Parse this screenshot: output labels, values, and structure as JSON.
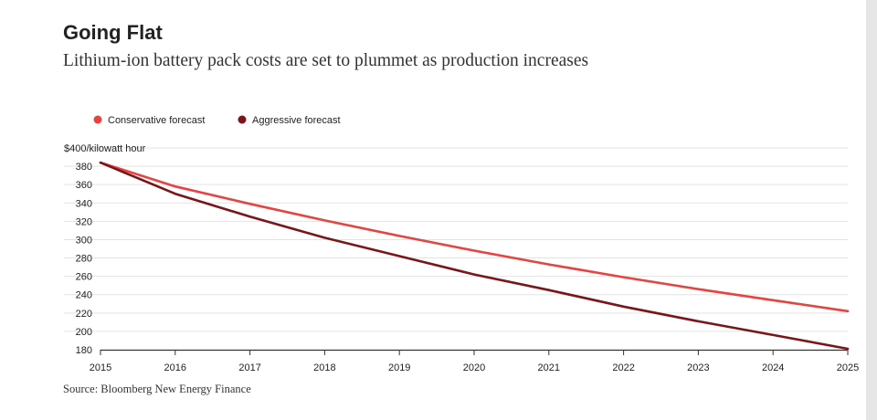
{
  "title": "Going Flat",
  "subtitle": "Lithium-ion battery pack costs are set to plummet as production increases",
  "source": "Source: Bloomberg New Energy Finance",
  "colors": {
    "conservative": "#e8433f",
    "aggressive": "#7a1619",
    "grid": "#e3e3e3",
    "axis": "#333333",
    "text": "#222222"
  },
  "chart_data": {
    "type": "line",
    "x": [
      2015,
      2016,
      2017,
      2018,
      2019,
      2020,
      2021,
      2022,
      2023,
      2024,
      2025
    ],
    "x_tick_labels": [
      "2015",
      "2016",
      "2017",
      "2018",
      "2019",
      "2020",
      "2021",
      "2022",
      "2023",
      "2024",
      "2025"
    ],
    "y_ticks": [
      180,
      200,
      220,
      240,
      260,
      280,
      300,
      320,
      340,
      360,
      380
    ],
    "y_unit_label": "$400/kilowatt hour",
    "ylim": [
      180,
      400
    ],
    "xlim": [
      2015,
      2025
    ],
    "grid": true,
    "legend_position": "top-left",
    "series": [
      {
        "name": "Conservative forecast",
        "color_key": "conservative",
        "values": [
          384,
          358,
          339,
          321,
          304,
          288,
          273,
          259,
          246,
          234,
          222
        ]
      },
      {
        "name": "Aggressive forecast",
        "color_key": "aggressive",
        "values": [
          384,
          350,
          325,
          302,
          282,
          262,
          245,
          227,
          211,
          196,
          181
        ]
      }
    ]
  }
}
